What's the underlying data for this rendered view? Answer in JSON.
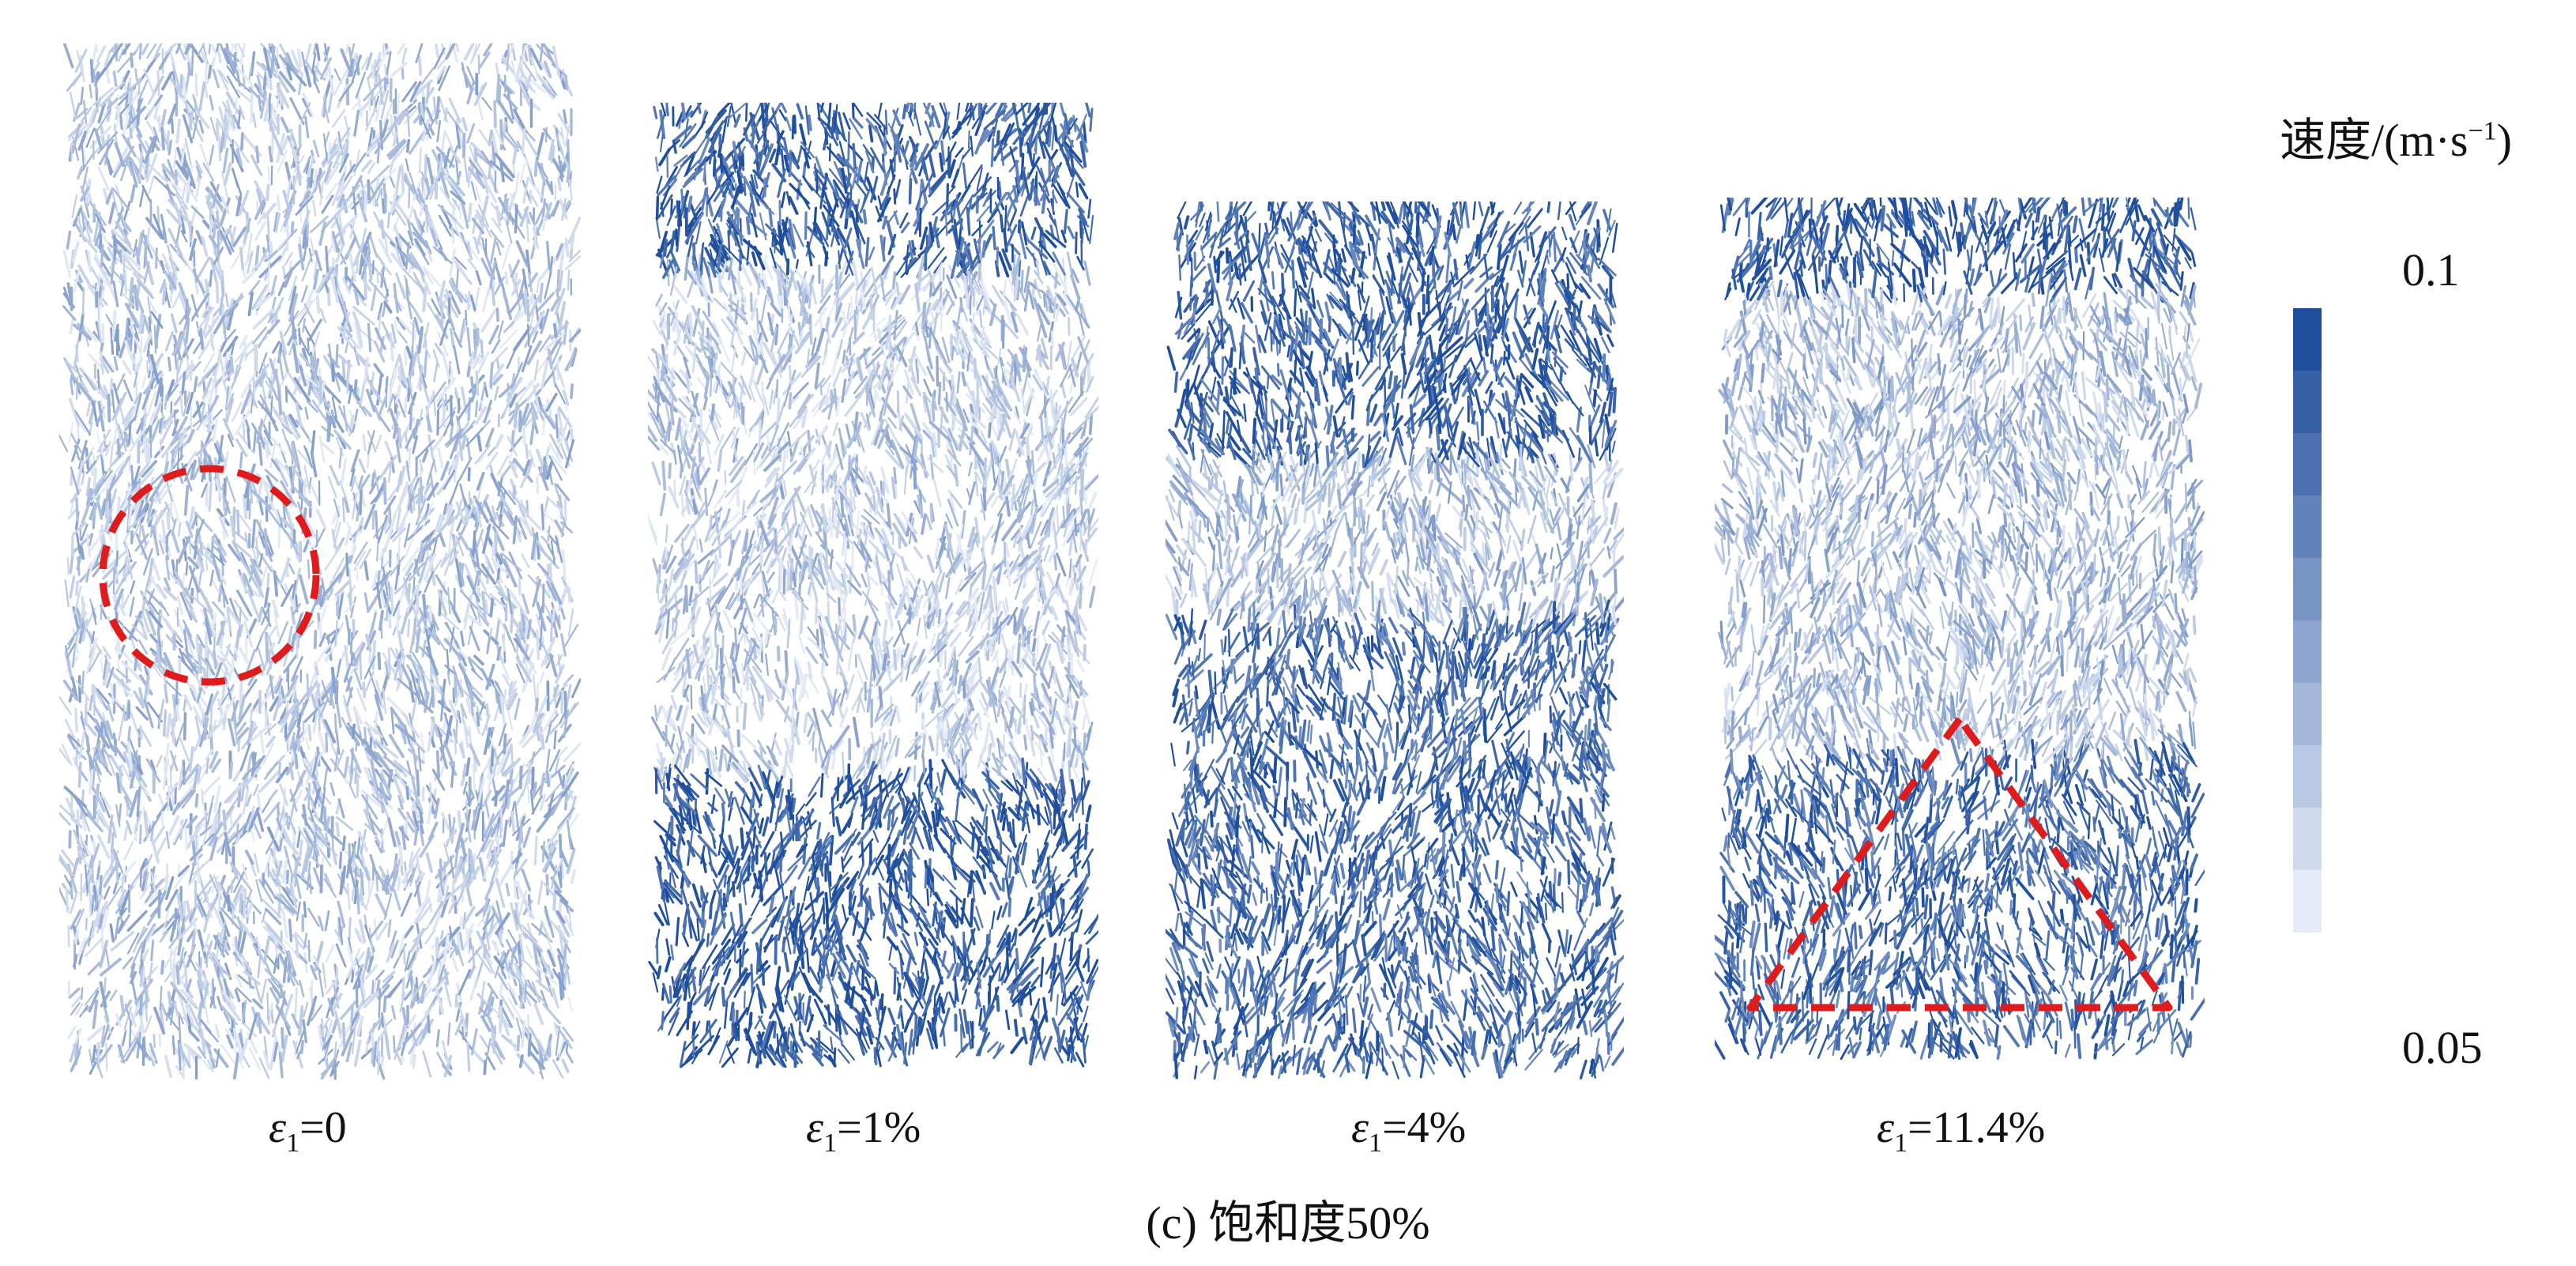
{
  "caption": "(c) 饱和度50%",
  "panels": [
    {
      "strain_symbol": "ε",
      "strain_sub": "1",
      "strain_value": "=0",
      "annotation": "circle"
    },
    {
      "strain_symbol": "ε",
      "strain_sub": "1",
      "strain_value": "=1%",
      "annotation": "none"
    },
    {
      "strain_symbol": "ε",
      "strain_sub": "1",
      "strain_value": "=4%",
      "annotation": "none"
    },
    {
      "strain_symbol": "ε",
      "strain_sub": "1",
      "strain_value": "=11.4%",
      "annotation": "triangle"
    }
  ],
  "legend": {
    "title": "速度/(m·s",
    "title_exp": "−1",
    "title_close": ")",
    "max_label": "0.1",
    "min_label": "0.05",
    "color_high": "#1f4e9c",
    "color_low": "#e6ecf7"
  },
  "annotation_color": "#e01b1b"
}
